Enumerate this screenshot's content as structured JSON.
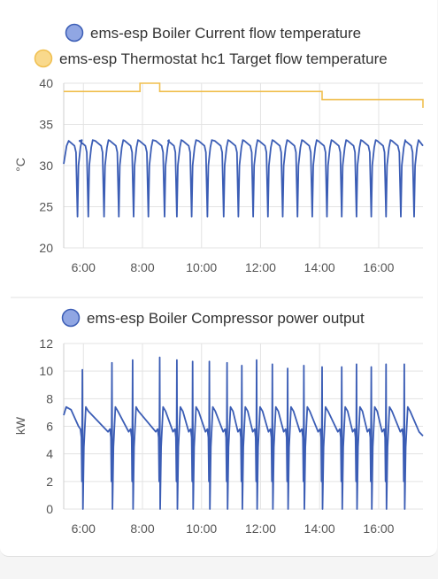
{
  "colors": {
    "flow_series": "#3b5db5",
    "flow_legend_fill": "#90a6e3",
    "target_series": "#f0bf4f",
    "target_legend_fill": "#f9d98c",
    "grid": "#e3e3e3",
    "divider": "#e0e0e0"
  },
  "chart_data": [
    {
      "type": "line",
      "ylabel": "°C",
      "ylim": [
        20,
        40
      ],
      "yticks": [
        20,
        25,
        30,
        35,
        40
      ],
      "xlim": [
        "05:20",
        "17:30"
      ],
      "xticks": [
        "6:00",
        "8:00",
        "10:00",
        "12:00",
        "14:00",
        "16:00"
      ],
      "grid": true,
      "legend_position": "top",
      "series": [
        {
          "name": "ems-esp Boiler Current flow temperature",
          "pattern": "cycling",
          "x": [
            "05:20",
            "05:48",
            "06:10",
            "06:42",
            "07:12",
            "07:42",
            "08:12",
            "08:45",
            "09:10",
            "09:40",
            "10:12",
            "10:45",
            "11:15",
            "11:45",
            "12:15",
            "12:45",
            "13:15",
            "13:45",
            "14:15",
            "14:45",
            "15:15",
            "15:45",
            "16:15",
            "16:45",
            "17:12"
          ],
          "cycle_low": 23.8,
          "cycle_high": 33.0,
          "end_value": 32.4
        },
        {
          "name": "ems-esp Thermostat hc1 Target flow temperature",
          "pattern": "step",
          "x": [
            "05:20",
            "07:55",
            "08:35",
            "14:05",
            "17:25",
            "17:30"
          ],
          "values": [
            39,
            40,
            39,
            38,
            38,
            37
          ]
        }
      ]
    },
    {
      "type": "line",
      "ylabel": "kW",
      "ylim": [
        0,
        12
      ],
      "yticks": [
        0,
        2,
        4,
        6,
        8,
        10,
        12
      ],
      "xlim": [
        "05:20",
        "17:30"
      ],
      "xticks": [
        "6:00",
        "8:00",
        "10:00",
        "12:00",
        "14:00",
        "16:00"
      ],
      "grid": true,
      "legend_position": "top",
      "series": [
        {
          "name": "ems-esp Boiler Compressor power output",
          "pattern": "cycling",
          "x": [
            "05:58",
            "06:58",
            "07:40",
            "08:35",
            "09:10",
            "09:42",
            "10:16",
            "10:52",
            "11:22",
            "11:52",
            "12:24",
            "12:55",
            "13:28",
            "14:05",
            "14:45",
            "15:15",
            "15:45",
            "16:15",
            "16:52"
          ],
          "peaks": [
            10.1,
            10.6,
            10.8,
            11.0,
            10.8,
            10.7,
            10.7,
            10.6,
            10.4,
            10.8,
            10.5,
            10.2,
            10.4,
            10.3,
            10.3,
            10.5,
            10.3,
            10.5,
            10.5
          ],
          "plateau_start": 7.4,
          "plateau_end": 5.6,
          "end_value": 5.3
        }
      ]
    }
  ]
}
